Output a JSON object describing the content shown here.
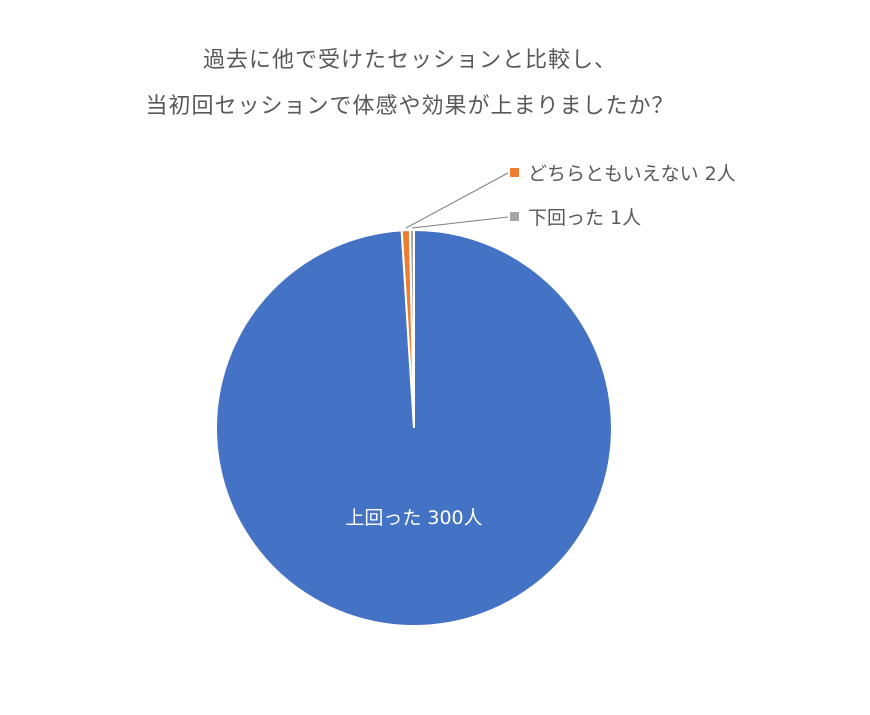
{
  "chart_data": {
    "type": "pie",
    "title": [
      "過去に他で受けたセッションと比較し、",
      "当初回セッションで体感や効果が上まりましたか？"
    ],
    "slices": [
      {
        "label": "上回った",
        "value": 300,
        "display": "300人",
        "color": "#4472C4"
      },
      {
        "label": "どちらともいえない",
        "value": 2,
        "display": "2人",
        "color": "#ED7D31"
      },
      {
        "label": "下回った",
        "value": 1,
        "display": "1人",
        "color": "#A5A5A5"
      }
    ],
    "start_angle": "12 o'clock, clockwise",
    "legend": "none"
  }
}
